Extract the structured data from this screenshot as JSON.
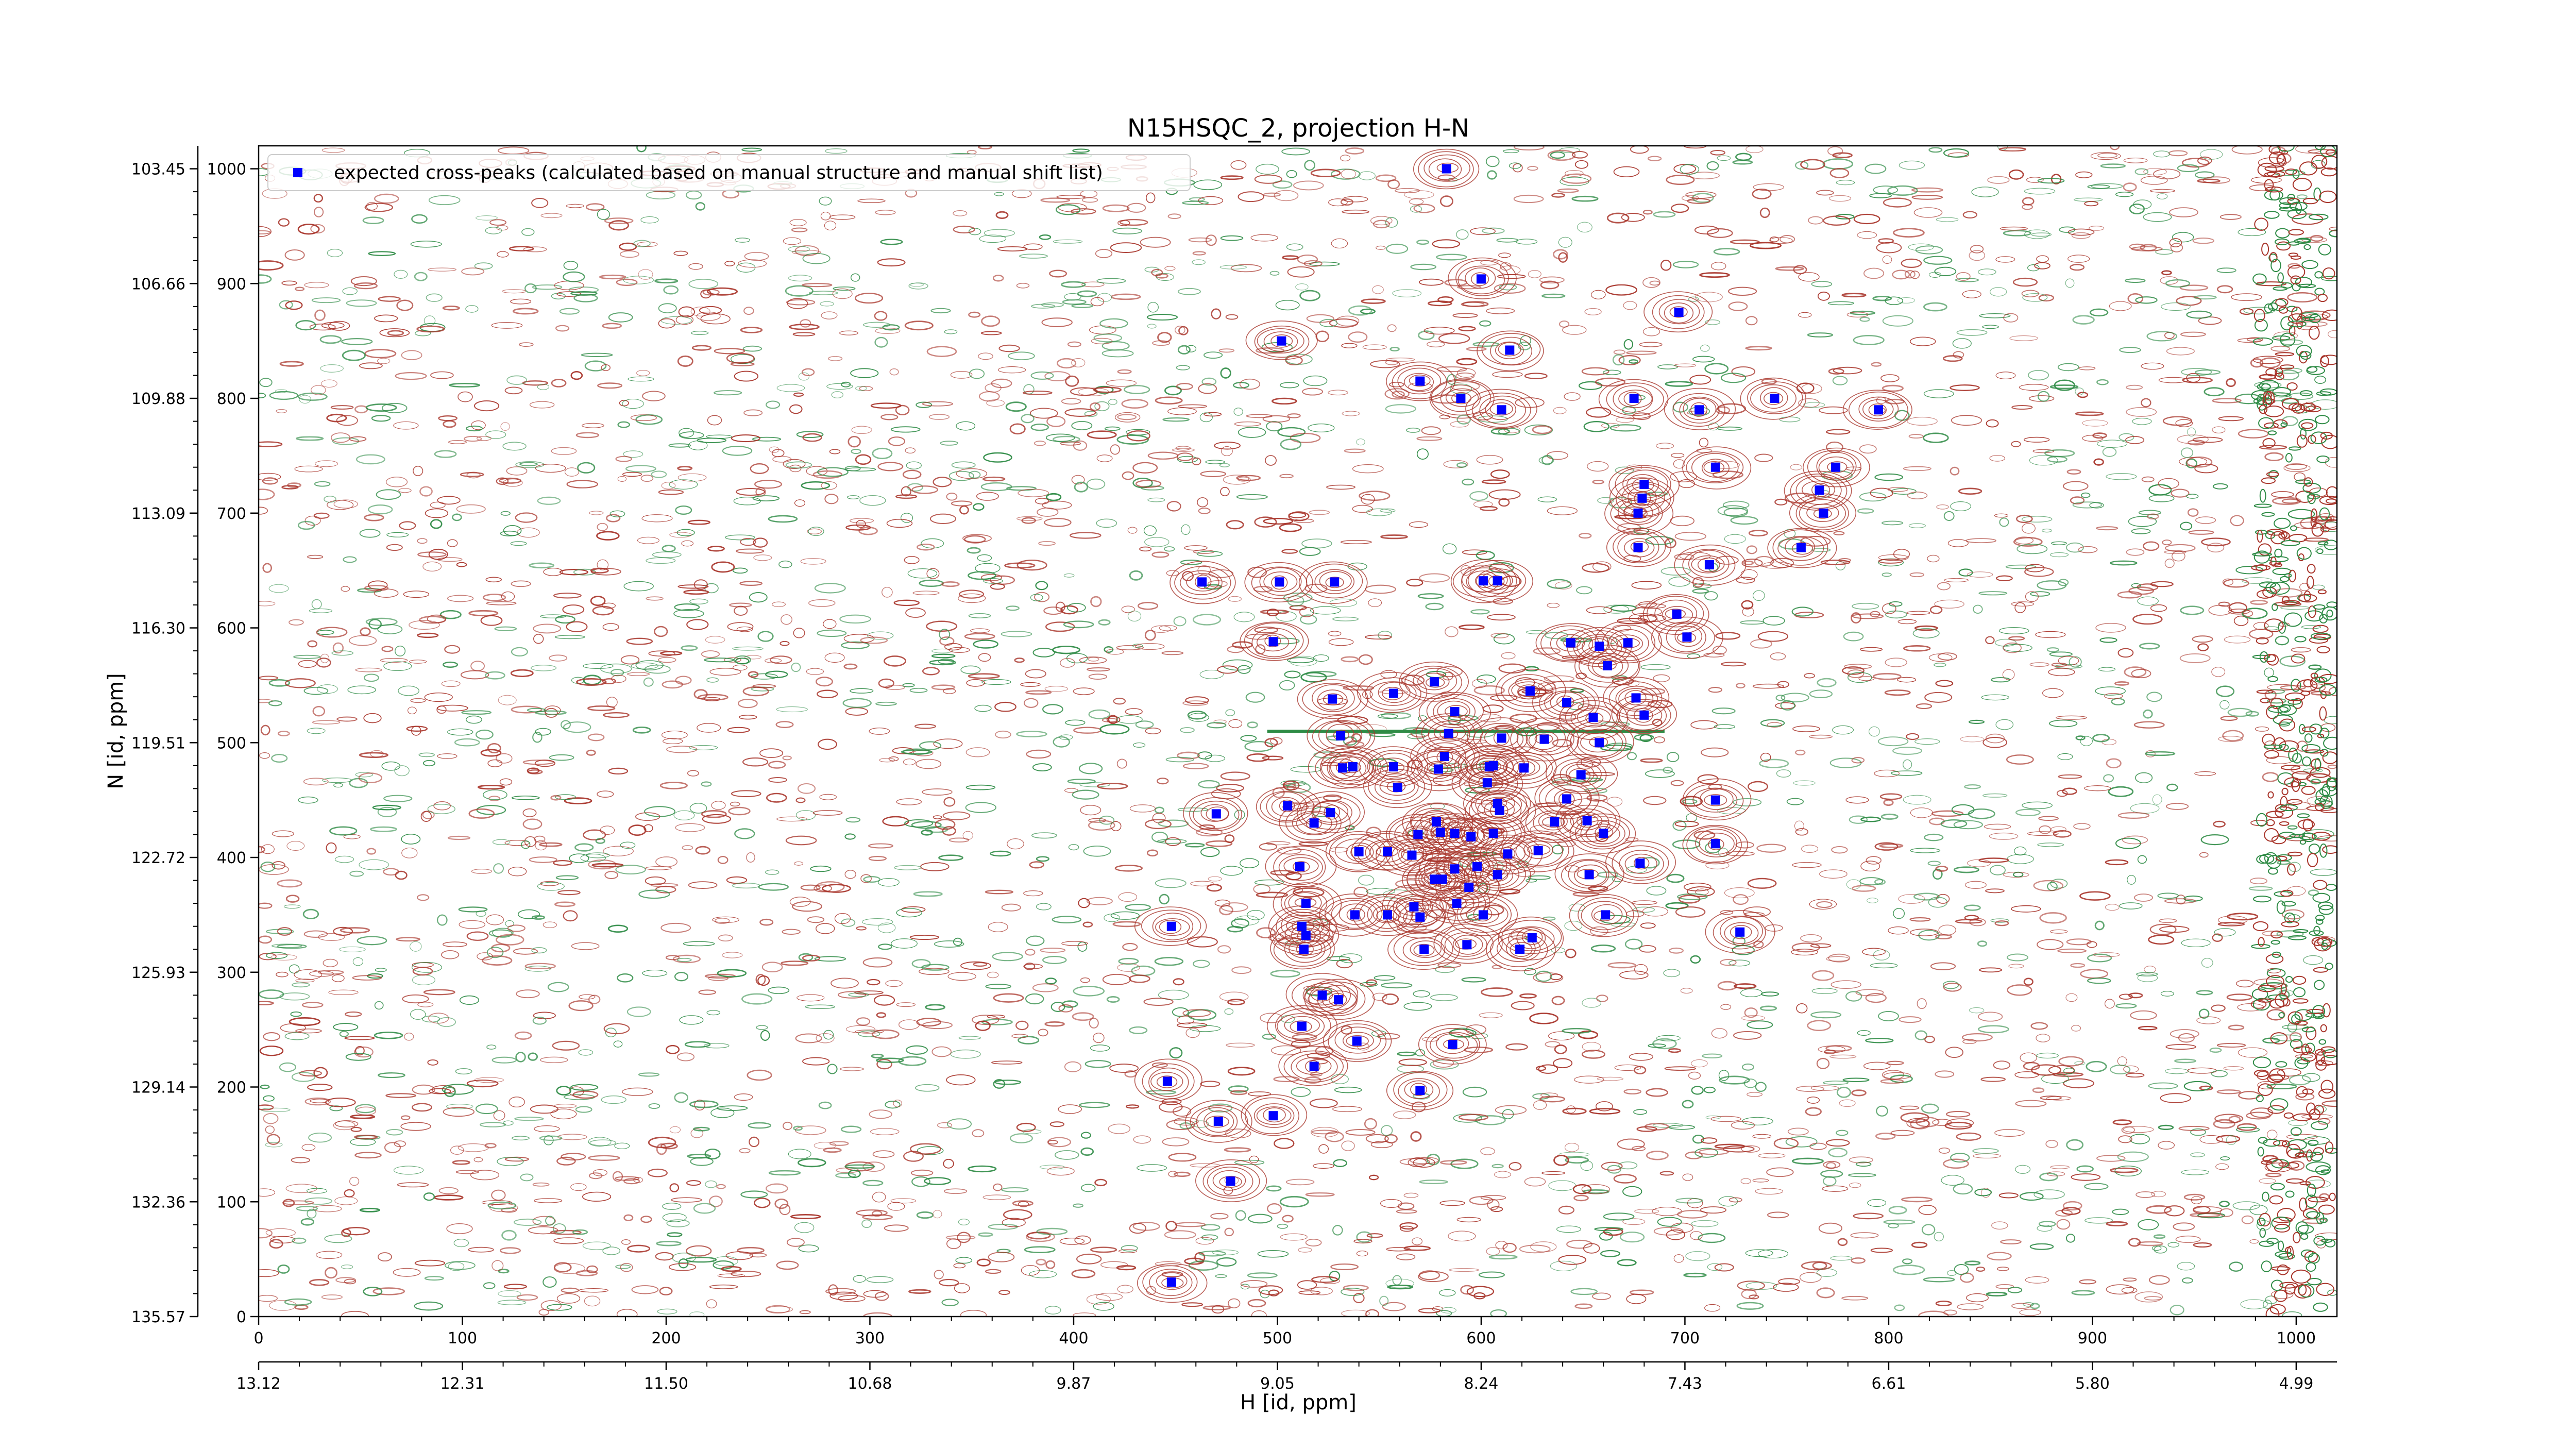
{
  "chart_data": {
    "type": "scatter",
    "title": "N15HSQC_2, projection H-N",
    "xlabel": "H [id, ppm]",
    "ylabel": "N [id, ppm]",
    "xlim": [
      0,
      1020
    ],
    "ylim": [
      0,
      1020
    ],
    "x_ticks": [
      0,
      100,
      200,
      300,
      400,
      500,
      600,
      700,
      800,
      900,
      1000
    ],
    "x_ppm_ticks": [
      "13.12",
      "12.31",
      "11.50",
      "10.68",
      "9.87",
      "9.05",
      "8.24",
      "7.43",
      "6.61",
      "5.80",
      "4.99"
    ],
    "y_ticks": [
      0,
      100,
      200,
      300,
      400,
      500,
      600,
      700,
      800,
      900,
      1000
    ],
    "y_ppm_ticks": [
      "135.57",
      "132.36",
      "129.14",
      "125.93",
      "122.72",
      "119.51",
      "116.30",
      "113.09",
      "109.88",
      "106.66",
      "103.45"
    ],
    "grid": false,
    "legend": {
      "position": "top-left",
      "entry": "expected cross-peaks (calculated based on manual structure and manual shift list)"
    },
    "colors": {
      "marker": "#0000ff",
      "positive_contour": "#a8342a",
      "negative_contour": "#2e8b45"
    },
    "series": [
      {
        "name": "expected cross-peaks (calculated based on manual structure and manual shift list)",
        "points": [
          [
            583,
            1000
          ],
          [
            600,
            904
          ],
          [
            614,
            842
          ],
          [
            502,
            850
          ],
          [
            570,
            815
          ],
          [
            590,
            800
          ],
          [
            610,
            790
          ],
          [
            697,
            875
          ],
          [
            675,
            800
          ],
          [
            707,
            790
          ],
          [
            744,
            800
          ],
          [
            795,
            790
          ],
          [
            774,
            740
          ],
          [
            715,
            740
          ],
          [
            680,
            725
          ],
          [
            677,
            700
          ],
          [
            679,
            713
          ],
          [
            677,
            670
          ],
          [
            766,
            720
          ],
          [
            768,
            700
          ],
          [
            757,
            670
          ],
          [
            712,
            655
          ],
          [
            463,
            640
          ],
          [
            501,
            640
          ],
          [
            528,
            640
          ],
          [
            601,
            641
          ],
          [
            608,
            641
          ],
          [
            696,
            612
          ],
          [
            701,
            592
          ],
          [
            498,
            588
          ],
          [
            644,
            587
          ],
          [
            658,
            584
          ],
          [
            672,
            587
          ],
          [
            662,
            567
          ],
          [
            577,
            553
          ],
          [
            557,
            543
          ],
          [
            624,
            545
          ],
          [
            527,
            538
          ],
          [
            642,
            535
          ],
          [
            676,
            539
          ],
          [
            680,
            524
          ],
          [
            587,
            527
          ],
          [
            655,
            522
          ],
          [
            531,
            506
          ],
          [
            584,
            508
          ],
          [
            610,
            504
          ],
          [
            631,
            503
          ],
          [
            658,
            500
          ],
          [
            582,
            488
          ],
          [
            606,
            480
          ],
          [
            532,
            478
          ],
          [
            537,
            479
          ],
          [
            557,
            479
          ],
          [
            579,
            477
          ],
          [
            604,
            479
          ],
          [
            621,
            478
          ],
          [
            649,
            472
          ],
          [
            603,
            465
          ],
          [
            559,
            461
          ],
          [
            642,
            451
          ],
          [
            608,
            447
          ],
          [
            505,
            445
          ],
          [
            609,
            441
          ],
          [
            526,
            439
          ],
          [
            470,
            438
          ],
          [
            518,
            430
          ],
          [
            578,
            431
          ],
          [
            636,
            431
          ],
          [
            652,
            432
          ],
          [
            715,
            450
          ],
          [
            569,
            420
          ],
          [
            580,
            422
          ],
          [
            587,
            421
          ],
          [
            595,
            418
          ],
          [
            606,
            421
          ],
          [
            660,
            421
          ],
          [
            715,
            412
          ],
          [
            540,
            405
          ],
          [
            554,
            405
          ],
          [
            566,
            402
          ],
          [
            628,
            406
          ],
          [
            613,
            403
          ],
          [
            511,
            392
          ],
          [
            598,
            392
          ],
          [
            587,
            390
          ],
          [
            608,
            385
          ],
          [
            653,
            385
          ],
          [
            678,
            395
          ],
          [
            577,
            381
          ],
          [
            581,
            381
          ],
          [
            594,
            374
          ],
          [
            588,
            360
          ],
          [
            567,
            357
          ],
          [
            554,
            350
          ],
          [
            538,
            350
          ],
          [
            601,
            350
          ],
          [
            661,
            350
          ],
          [
            512,
            340
          ],
          [
            514,
            332
          ],
          [
            513,
            320
          ],
          [
            448,
            340
          ],
          [
            727,
            335
          ],
          [
            572,
            320
          ],
          [
            593,
            324
          ],
          [
            619,
            320
          ],
          [
            625,
            330
          ],
          [
            570,
            348
          ],
          [
            514,
            360
          ],
          [
            522,
            280
          ],
          [
            530,
            276
          ],
          [
            512,
            253
          ],
          [
            539,
            240
          ],
          [
            586,
            237
          ],
          [
            518,
            218
          ],
          [
            570,
            197
          ],
          [
            446,
            205
          ],
          [
            471,
            170
          ],
          [
            498,
            175
          ],
          [
            477,
            118
          ],
          [
            448,
            30
          ]
        ]
      }
    ]
  }
}
